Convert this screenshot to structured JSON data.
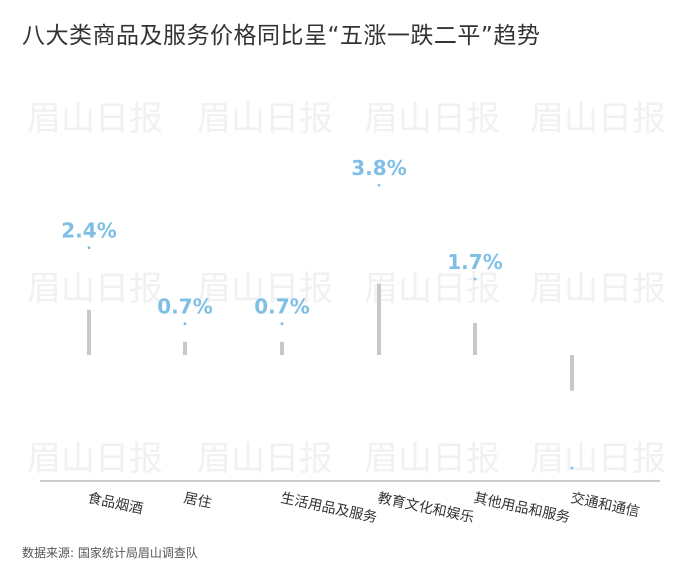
{
  "title": "八大类商品及服务价格同比呈“五涨一跌二平”趋势",
  "source": "数据来源: 国家统计局眉山调查队",
  "watermark": "眉山日报",
  "colors": {
    "bar": "#c8c8c8",
    "value_label": "#7fbfe6",
    "axis": "#999999",
    "watermark": "#f1f1f1",
    "dot": "#7fbfe6"
  },
  "chart_data": {
    "type": "bar",
    "title": "八大类商品及服务价格同比呈“五涨一跌二平”趋势",
    "categories": [
      "食品烟酒",
      "居住",
      "生活用品及服务",
      "教育文化和娱乐",
      "其他用品和服务",
      "交通和通信"
    ],
    "values": [
      2.4,
      0.7,
      0.7,
      3.8,
      1.7,
      -1.9
    ],
    "value_labels": [
      "2.4%",
      "0.7%",
      "0.7%",
      "3.8%",
      "1.7%",
      ""
    ],
    "ylim": [
      -3.5,
      5.5
    ],
    "grid": false,
    "legend": "none"
  }
}
